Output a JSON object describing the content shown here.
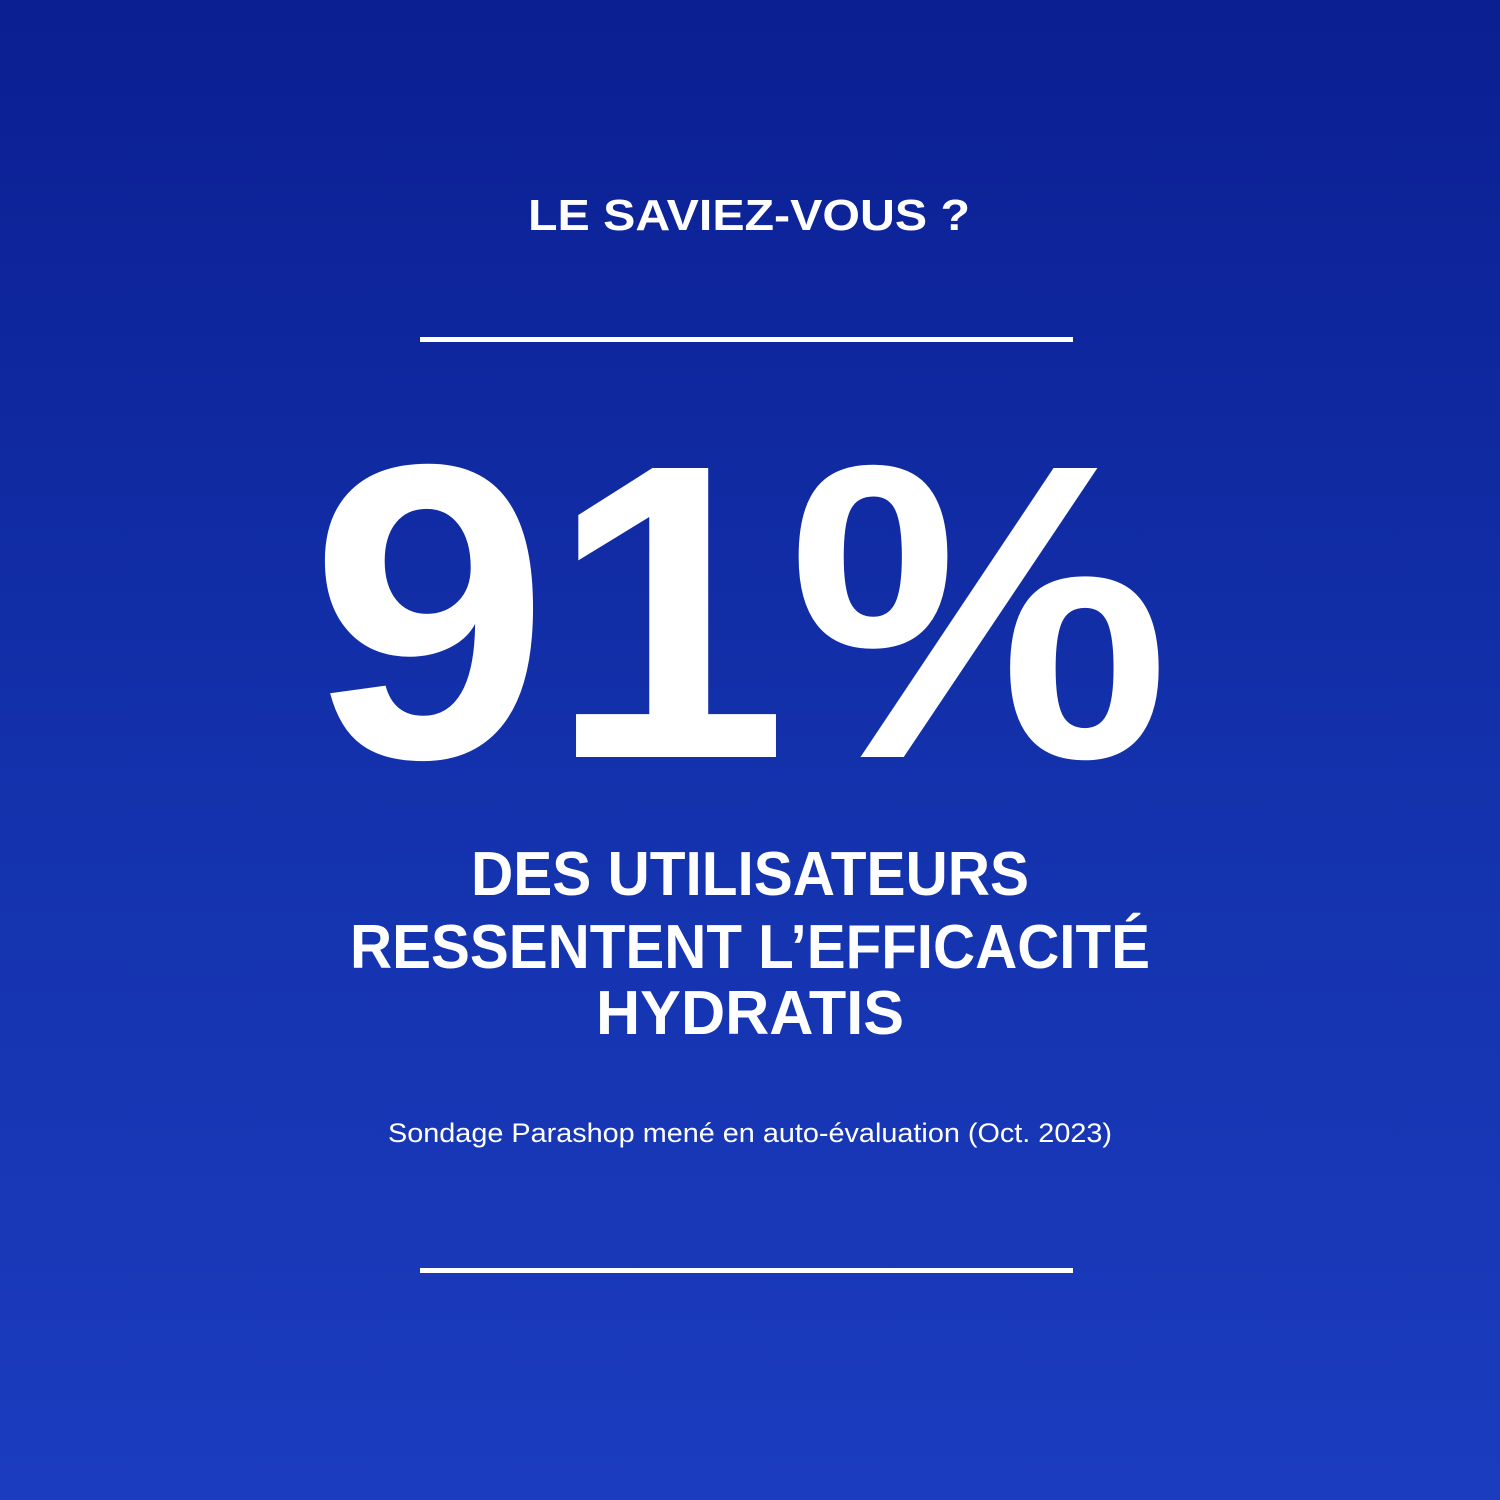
{
  "eyebrow": "LE SAVIEZ-VOUS ?",
  "stat": "91%",
  "description": [
    "DES UTILISATEURS",
    "RESSENTENT L’EFFICACITÉ",
    "HYDRATIS"
  ],
  "footnote": "Sondage Parashop mené en auto-évaluation (Oct. 2023)"
}
